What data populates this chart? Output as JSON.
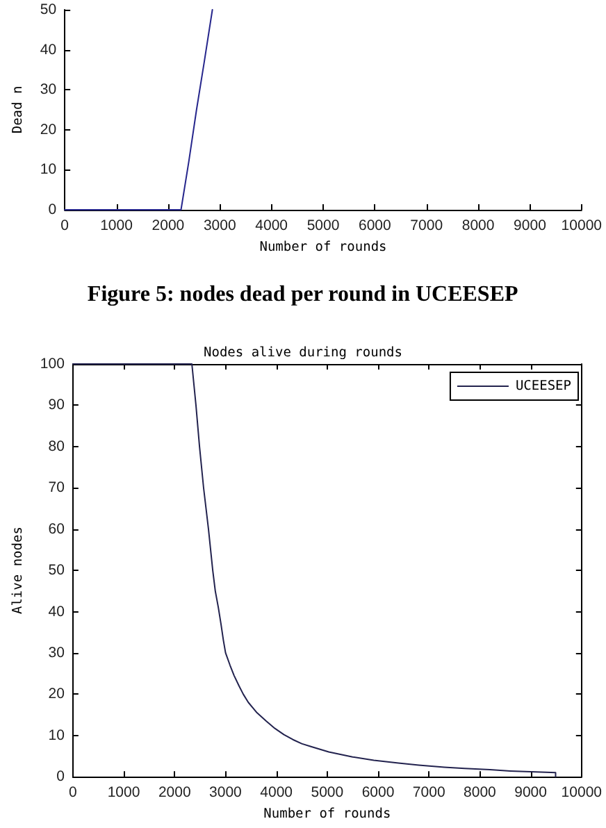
{
  "chart_data": [
    {
      "type": "line",
      "xlabel": "Number of rounds",
      "ylabel": "Dead n",
      "annotations": [
        "Figure 5: nodes dead per round in UCEESEP"
      ],
      "series": [
        {
          "color": "#26268c",
          "x": [
            0,
            2250,
            2400,
            2550,
            2700,
            2857
          ],
          "values": [
            0,
            0,
            12,
            25,
            37,
            50
          ]
        }
      ],
      "xlim": [
        0,
        10000
      ],
      "xticks": [
        0,
        1000,
        2000,
        3000,
        4000,
        5000,
        6000,
        7000,
        8000,
        9000,
        10000
      ],
      "ylim": [
        0,
        50
      ],
      "yticks": [
        0,
        10,
        20,
        30,
        40,
        50
      ],
      "grid": false,
      "legend": false,
      "marker": "none",
      "line_style": "solid"
    },
    {
      "type": "line",
      "title": "Nodes alive during rounds",
      "xlabel": "Number of rounds",
      "ylabel": "Alive nodes",
      "series": [
        {
          "name": "UCEESEP",
          "color": "#22224e",
          "x": [
            0,
            2340,
            2420,
            2490,
            2570,
            2666,
            2750,
            2800,
            2860,
            2912,
            2960,
            3002,
            3090,
            3170,
            3267,
            3350,
            3450,
            3619,
            3800,
            3972,
            4150,
            4326,
            4500,
            4680,
            5031,
            5500,
            5915,
            6400,
            6800,
            7300,
            7700,
            8200,
            8600,
            9000,
            9300,
            9490,
            9490
          ],
          "values": [
            100,
            100,
            90,
            80,
            70,
            60,
            50,
            45,
            41,
            37,
            33,
            30,
            27,
            24.5,
            22,
            20,
            18,
            15.5,
            13.5,
            11.7,
            10.2,
            9,
            8,
            7.3,
            6,
            4.8,
            4,
            3.3,
            2.8,
            2.3,
            2,
            1.7,
            1.4,
            1.2,
            1.1,
            1,
            0
          ]
        }
      ],
      "xlim": [
        0,
        10000
      ],
      "xticks": [
        0,
        1000,
        2000,
        3000,
        4000,
        5000,
        6000,
        7000,
        8000,
        9000,
        10000
      ],
      "ylim": [
        0,
        100
      ],
      "yticks": [
        0,
        10,
        20,
        30,
        40,
        50,
        60,
        70,
        80,
        90,
        100
      ],
      "grid": false,
      "legend": "top right",
      "marker": "none",
      "line_style": "solid"
    }
  ]
}
